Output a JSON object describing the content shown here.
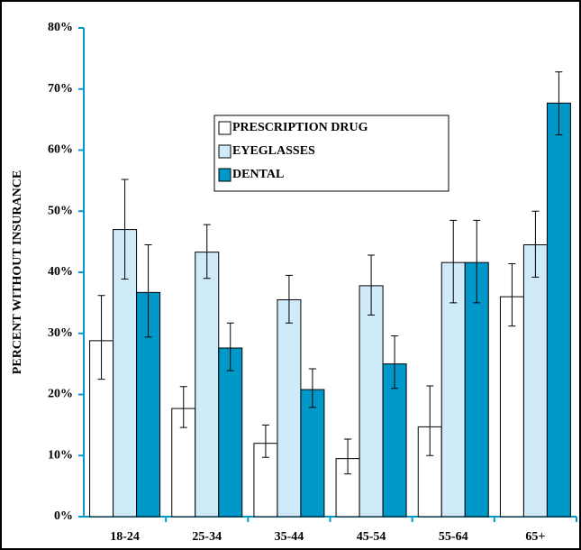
{
  "chart_data": {
    "type": "bar",
    "y_label": "PERCENT WITHOUT INSURANCE",
    "categories": [
      "18-24",
      "25-34",
      "35-44",
      "45-54",
      "55-64",
      "65+"
    ],
    "series": [
      {
        "name": "PRESCRIPTION DRUG",
        "color": "#ffffff",
        "values": [
          28.8,
          17.7,
          12,
          9.5,
          14.7,
          36
        ],
        "error_low": [
          22.5,
          14.6,
          9.7,
          7,
          10,
          31.2
        ],
        "error_high": [
          36.2,
          21.3,
          15,
          12.7,
          21.4,
          41.4
        ]
      },
      {
        "name": "EYEGLASSES",
        "color": "#cfeaf8",
        "values": [
          47,
          43.3,
          35.5,
          37.8,
          41.6,
          44.5
        ],
        "error_low": [
          38.9,
          39,
          31.7,
          33,
          35,
          39.2
        ],
        "error_high": [
          55.2,
          47.8,
          39.5,
          42.8,
          48.5,
          50
        ]
      },
      {
        "name": "DENTAL",
        "color": "#0098c8",
        "values": [
          36.7,
          27.6,
          20.8,
          25,
          41.6,
          67.7
        ],
        "error_low": [
          29.4,
          23.9,
          17.9,
          21,
          35,
          62.5
        ],
        "error_high": [
          44.5,
          31.7,
          24.2,
          29.6,
          48.5,
          72.8
        ]
      }
    ],
    "ylim": [
      0,
      80
    ],
    "yticks": [
      {
        "value": 0,
        "label": "0%"
      },
      {
        "value": 10,
        "label": "10%"
      },
      {
        "value": 20,
        "label": "20%"
      },
      {
        "value": 30,
        "label": "30%"
      },
      {
        "value": 40,
        "label": "40%"
      },
      {
        "value": 50,
        "label": "50%"
      },
      {
        "value": 60,
        "label": "60%"
      },
      {
        "value": 70,
        "label": "70%"
      },
      {
        "value": 80,
        "label": "80%"
      }
    ],
    "grid": false
  }
}
